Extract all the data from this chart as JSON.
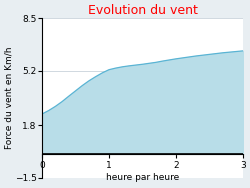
{
  "title": "Evolution du vent",
  "title_color": "#ff0000",
  "xlabel": "heure par heure",
  "ylabel": "Force du vent en Km/h",
  "bg_color": "#e8eef2",
  "plot_bg_color": "#ffffff",
  "fill_color": "#b8dde8",
  "line_color": "#5ab4d4",
  "xlim": [
    0,
    3
  ],
  "ylim": [
    -1.5,
    8.5
  ],
  "yticks": [
    -1.5,
    1.8,
    5.2,
    8.5
  ],
  "xticks": [
    0,
    1,
    2,
    3
  ],
  "x": [
    0.0,
    0.1,
    0.2,
    0.3,
    0.4,
    0.5,
    0.6,
    0.7,
    0.8,
    0.9,
    1.0,
    1.1,
    1.2,
    1.3,
    1.4,
    1.5,
    1.6,
    1.7,
    1.8,
    1.9,
    2.0,
    2.1,
    2.2,
    2.3,
    2.4,
    2.5,
    2.6,
    2.7,
    2.8,
    2.9,
    3.0
  ],
  "y": [
    2.5,
    2.72,
    2.98,
    3.28,
    3.62,
    3.95,
    4.28,
    4.58,
    4.84,
    5.08,
    5.28,
    5.38,
    5.46,
    5.52,
    5.57,
    5.62,
    5.68,
    5.74,
    5.82,
    5.89,
    5.96,
    6.02,
    6.08,
    6.14,
    6.19,
    6.24,
    6.29,
    6.34,
    6.38,
    6.42,
    6.46
  ],
  "fill_baseline": 0,
  "grid_color": "#d0d8e0",
  "tick_label_fontsize": 6.5,
  "axis_label_fontsize": 6.5,
  "title_fontsize": 9,
  "spine_color": "#000000",
  "axhline_color": "#000000",
  "axhline_lw": 1.2
}
